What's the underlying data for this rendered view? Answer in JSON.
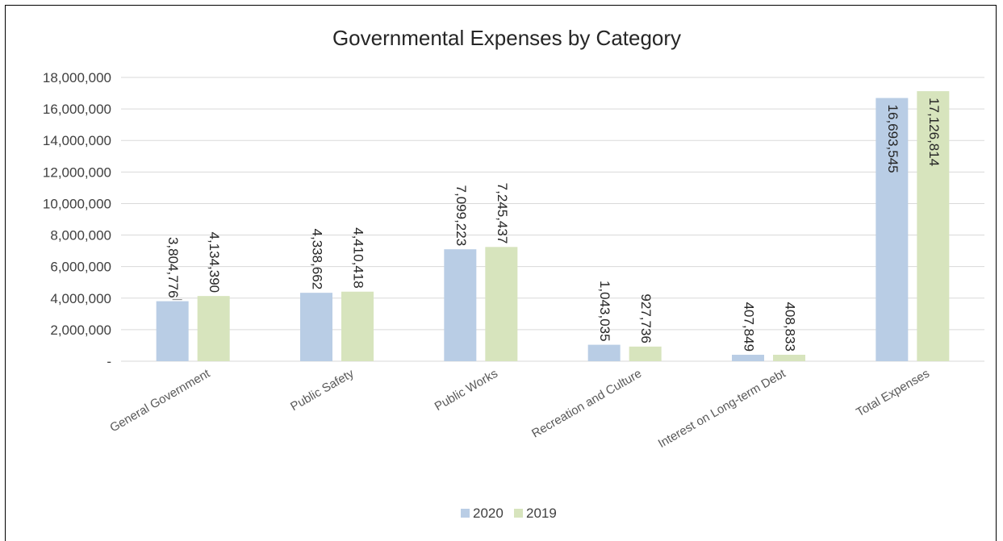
{
  "chart_data": {
    "type": "bar",
    "title": "Governmental Expenses by Category",
    "categories": [
      "General Government",
      "Public Safety",
      "Public Works",
      "Recreation and Culture",
      "Interest on Long-term Debt",
      "Total Expenses"
    ],
    "series": [
      {
        "name": "2020",
        "color": "#b9cde5",
        "values": [
          3804776,
          4338662,
          7099223,
          1043035,
          407849,
          16693545
        ],
        "labels": [
          "3,804,776",
          "4,338,662",
          "7,099,223",
          "1,043,035",
          "407,849",
          "16,693,545"
        ]
      },
      {
        "name": "2019",
        "color": "#d7e4bd",
        "values": [
          4134390,
          4410418,
          7245437,
          927736,
          408833,
          17126814
        ],
        "labels": [
          "4,134,390",
          "4,410,418",
          "7,245,437",
          "927,736",
          "408,833",
          "17,126,814"
        ]
      }
    ],
    "ylim": [
      0,
      18000000
    ],
    "yticks": [
      0,
      2000000,
      4000000,
      6000000,
      8000000,
      10000000,
      12000000,
      14000000,
      16000000,
      18000000
    ],
    "ytick_labels": [
      "-",
      "2,000,000",
      "4,000,000",
      "6,000,000",
      "8,000,000",
      "10,000,000",
      "12,000,000",
      "14,000,000",
      "16,000,000",
      "18,000,000"
    ],
    "grid": true,
    "legend_position": "bottom"
  }
}
